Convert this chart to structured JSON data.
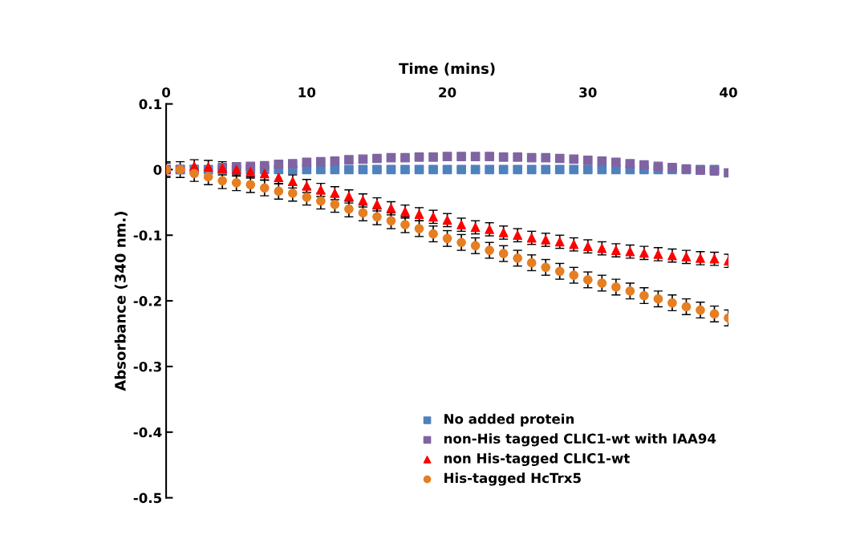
{
  "chart_data": {
    "type": "scatter",
    "xlabel": "Time (mins)",
    "ylabel": "Absorbance (340 nm.)",
    "x": [
      0,
      1,
      2,
      3,
      4,
      5,
      6,
      7,
      8,
      9,
      10,
      11,
      12,
      13,
      14,
      15,
      16,
      17,
      18,
      19,
      20,
      21,
      22,
      23,
      24,
      25,
      26,
      27,
      28,
      29,
      30,
      31,
      32,
      33,
      34,
      35,
      36,
      37,
      38,
      39,
      40
    ],
    "xlim": [
      0,
      40
    ],
    "xticks": [
      0,
      10,
      20,
      30,
      40
    ],
    "ylim": [
      -0.5,
      0.1
    ],
    "yticks": [
      -0.5,
      -0.4,
      -0.3,
      -0.2,
      -0.1,
      0,
      0.1
    ],
    "grid": false,
    "legend": "bottom right",
    "series": [
      {
        "name": "No added protein",
        "color": "#4f81bd",
        "marker": "square",
        "values": [
          0,
          0,
          0,
          0,
          0,
          0,
          0,
          0,
          0,
          0,
          0,
          0,
          0,
          0,
          0,
          0,
          0,
          0,
          0,
          0,
          0,
          0,
          0,
          0,
          0,
          0,
          0,
          0,
          0,
          0,
          0,
          0,
          0,
          0,
          0,
          0,
          0,
          0,
          0,
          0,
          null
        ]
      },
      {
        "name": "non-His tagged CLIC1-wt with IAA94",
        "color": "#8064a2",
        "marker": "square",
        "values": [
          0,
          0,
          null,
          null,
          0.003,
          0.004,
          0.005,
          0.006,
          0.008,
          0.009,
          0.011,
          0.012,
          0.013,
          0.015,
          0.016,
          0.017,
          0.018,
          0.018,
          0.019,
          0.019,
          0.02,
          0.02,
          0.02,
          0.02,
          0.019,
          0.019,
          0.018,
          0.018,
          0.017,
          0.016,
          0.014,
          0.013,
          0.011,
          0.009,
          0.007,
          0.005,
          0.003,
          0.001,
          -0.001,
          -0.002,
          -0.005
        ]
      },
      {
        "name": "non His-tagged CLIC1-wt",
        "color": "#ff0000",
        "marker": "triangle",
        "values": [
          0,
          null,
          0.005,
          0.004,
          0.002,
          0,
          -0.003,
          -0.006,
          -0.012,
          -0.018,
          -0.025,
          -0.031,
          -0.036,
          -0.041,
          -0.047,
          -0.053,
          -0.059,
          -0.064,
          -0.068,
          -0.072,
          -0.077,
          -0.084,
          -0.088,
          -0.091,
          -0.096,
          -0.1,
          -0.104,
          -0.107,
          -0.11,
          -0.114,
          -0.117,
          -0.12,
          -0.123,
          -0.125,
          -0.127,
          -0.129,
          -0.131,
          -0.133,
          -0.135,
          -0.136,
          -0.139
        ],
        "errors": [
          0.01,
          null,
          0.01,
          0.01,
          0.01,
          0.01,
          0.01,
          0.01,
          0.01,
          0.01,
          0.01,
          0.01,
          0.01,
          0.01,
          0.01,
          0.01,
          0.01,
          0.01,
          0.01,
          0.01,
          0.01,
          0.01,
          0.01,
          0.01,
          0.01,
          0.01,
          0.01,
          0.01,
          0.01,
          0.01,
          0.01,
          0.01,
          0.01,
          0.01,
          0.01,
          0.01,
          0.01,
          0.01,
          0.01,
          0.01,
          0.01
        ]
      },
      {
        "name": "His-tagged HcTrx5",
        "color": "#e67e22",
        "marker": "circle",
        "values": [
          0,
          0,
          -0.006,
          -0.011,
          -0.017,
          -0.02,
          -0.023,
          -0.028,
          -0.033,
          -0.036,
          -0.042,
          -0.048,
          -0.053,
          -0.06,
          -0.066,
          -0.072,
          -0.078,
          -0.084,
          -0.09,
          -0.098,
          -0.105,
          -0.111,
          -0.116,
          -0.123,
          -0.128,
          -0.135,
          -0.142,
          -0.149,
          -0.155,
          -0.161,
          -0.168,
          -0.173,
          -0.179,
          -0.185,
          -0.192,
          -0.197,
          -0.203,
          -0.209,
          -0.214,
          -0.22,
          -0.226
        ],
        "errors": [
          0.012,
          0.012,
          0.012,
          0.012,
          0.012,
          0.012,
          0.012,
          0.012,
          0.012,
          0.012,
          0.012,
          0.012,
          0.012,
          0.012,
          0.012,
          0.012,
          0.012,
          0.012,
          0.012,
          0.012,
          0.012,
          0.012,
          0.012,
          0.012,
          0.012,
          0.012,
          0.012,
          0.012,
          0.012,
          0.012,
          0.012,
          0.012,
          0.012,
          0.012,
          0.012,
          0.012,
          0.012,
          0.012,
          0.012,
          0.012,
          0.012
        ]
      }
    ]
  }
}
